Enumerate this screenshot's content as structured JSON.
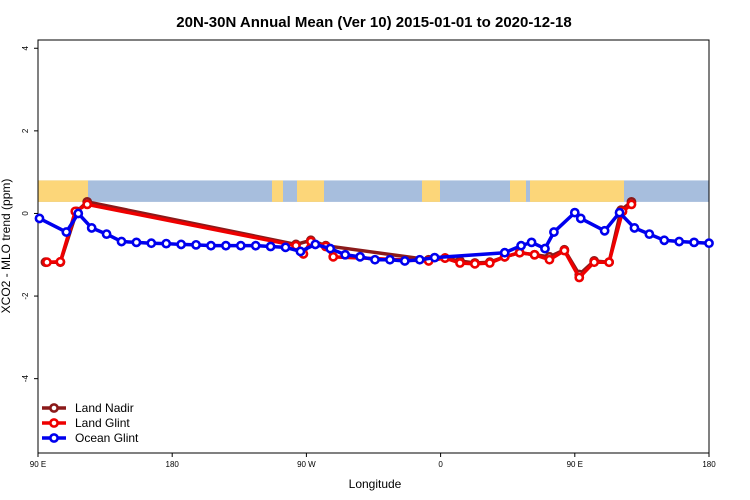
{
  "chart_data": {
    "type": "line",
    "title": "20N-30N Annual Mean (Ver 10)   2015-01-01 to 2020-12-18",
    "xlabel": "Longitude",
    "ylabel": "XCO2 - MLO trend (ppm)",
    "xlim": [
      90,
      540
    ],
    "ylim": [
      -5.8,
      4.2
    ],
    "x_ticks": [
      {
        "value": 90,
        "label": "90 E"
      },
      {
        "value": 180,
        "label": "180"
      },
      {
        "value": 270,
        "label": "90 W"
      },
      {
        "value": 360,
        "label": "0"
      },
      {
        "value": 450,
        "label": "90 E"
      },
      {
        "value": 540,
        "label": "180"
      }
    ],
    "y_ticks": [
      {
        "value": 4,
        "label": "4"
      },
      {
        "value": 2,
        "label": "2"
      },
      {
        "value": 0,
        "label": "0"
      },
      {
        "value": -2,
        "label": "-2"
      },
      {
        "value": -4,
        "label": "-4"
      }
    ],
    "map_strip": {
      "ocean_color": "#a7bedd",
      "land_color": "#fcd679",
      "y_top": 0.8,
      "y_bottom": 0.28
    },
    "legend_position": "bottom-left",
    "series": [
      {
        "name": "Land Nadir",
        "color": "#8b1a1a",
        "points": [
          [
            95,
            -1.18
          ],
          [
            105,
            -1.18
          ],
          [
            116,
            0.05
          ],
          [
            123,
            0.28
          ],
          [
            263,
            -0.75
          ],
          [
            273,
            -0.65
          ],
          [
            283,
            -0.78
          ],
          [
            352,
            -1.12
          ],
          [
            363,
            -1.08
          ],
          [
            373,
            -1.15
          ],
          [
            383,
            -1.2
          ],
          [
            393,
            -1.18
          ],
          [
            403,
            -1.05
          ],
          [
            413,
            -0.95
          ],
          [
            423,
            -1.0
          ],
          [
            433,
            -1.05
          ],
          [
            443,
            -0.88
          ],
          [
            453,
            -1.48
          ],
          [
            463,
            -1.15
          ],
          [
            473,
            -1.18
          ],
          [
            481,
            0.08
          ],
          [
            488,
            0.28
          ]
        ]
      },
      {
        "name": "Land Glint",
        "color": "#ee0000",
        "points": [
          [
            96,
            -1.18
          ],
          [
            105,
            -1.17
          ],
          [
            115,
            0.05
          ],
          [
            123,
            0.22
          ],
          [
            263,
            -0.78
          ],
          [
            268,
            -0.98
          ],
          [
            273,
            -0.68
          ],
          [
            283,
            -0.8
          ],
          [
            288,
            -1.05
          ],
          [
            352,
            -1.15
          ],
          [
            363,
            -1.08
          ],
          [
            373,
            -1.2
          ],
          [
            383,
            -1.22
          ],
          [
            393,
            -1.2
          ],
          [
            403,
            -1.05
          ],
          [
            413,
            -0.95
          ],
          [
            423,
            -1.0
          ],
          [
            433,
            -1.12
          ],
          [
            443,
            -0.9
          ],
          [
            453,
            -1.55
          ],
          [
            463,
            -1.18
          ],
          [
            473,
            -1.18
          ],
          [
            482,
            0.05
          ],
          [
            488,
            0.22
          ]
        ]
      },
      {
        "name": "Ocean Glint",
        "color": "#0000ee",
        "points": [
          [
            91,
            -0.12
          ],
          [
            109,
            -0.45
          ],
          [
            117,
            0.0
          ],
          [
            126,
            -0.35
          ],
          [
            136,
            -0.5
          ],
          [
            146,
            -0.68
          ],
          [
            156,
            -0.7
          ],
          [
            166,
            -0.72
          ],
          [
            176,
            -0.73
          ],
          [
            186,
            -0.75
          ],
          [
            196,
            -0.76
          ],
          [
            206,
            -0.78
          ],
          [
            216,
            -0.78
          ],
          [
            226,
            -0.78
          ],
          [
            236,
            -0.78
          ],
          [
            246,
            -0.8
          ],
          [
            256,
            -0.82
          ],
          [
            266,
            -0.92
          ],
          [
            276,
            -0.75
          ],
          [
            286,
            -0.85
          ],
          [
            296,
            -1.0
          ],
          [
            306,
            -1.05
          ],
          [
            316,
            -1.12
          ],
          [
            326,
            -1.12
          ],
          [
            336,
            -1.15
          ],
          [
            346,
            -1.12
          ],
          [
            356,
            -1.07
          ],
          [
            403,
            -0.95
          ],
          [
            414,
            -0.78
          ],
          [
            421,
            -0.7
          ],
          [
            430,
            -0.85
          ],
          [
            436,
            -0.45
          ],
          [
            450,
            0.02
          ],
          [
            454,
            -0.12
          ],
          [
            470,
            -0.42
          ],
          [
            480,
            0.02
          ],
          [
            490,
            -0.35
          ],
          [
            500,
            -0.5
          ],
          [
            510,
            -0.65
          ],
          [
            520,
            -0.68
          ],
          [
            530,
            -0.7
          ],
          [
            540,
            -0.72
          ]
        ]
      }
    ]
  }
}
